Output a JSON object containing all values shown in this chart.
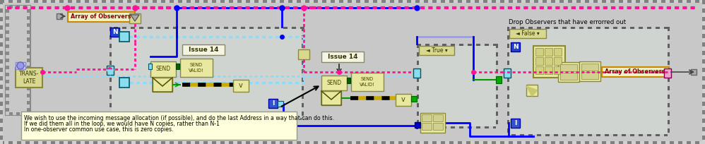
{
  "bg_color": "#c0c0c0",
  "pink": "#ff1199",
  "blue": "#0000ff",
  "cyan_light": "#88ddff",
  "cyan_dark": "#00cccc",
  "green_wire": "#009900",
  "yellow_wire": "#ccaa00",
  "purple_wire": "#9999ff",
  "annotation_text_line1": "We wish to use the incoming message allocation (if possible), and do the last Address in a way that can do this.",
  "annotation_text_line2": "If we did them all in the loop, we would have N copies, rather than N-1",
  "annotation_text_line3": "In one-observer common use case, this is zero copies.",
  "annotation_bg": "#ffffdd",
  "annotation_border": "#999988",
  "figsize": [
    9.98,
    2.04
  ],
  "dpi": 100,
  "outer_bg": "#b8b8b8",
  "loop_bg": "#d8d8d8",
  "box_fill": "#e8e8b0",
  "box_fill2": "#d8d8a0",
  "box_fill3": "#e8e8e0",
  "n_badge_blue": "#2244cc",
  "i_badge_blue": "#3355cc"
}
